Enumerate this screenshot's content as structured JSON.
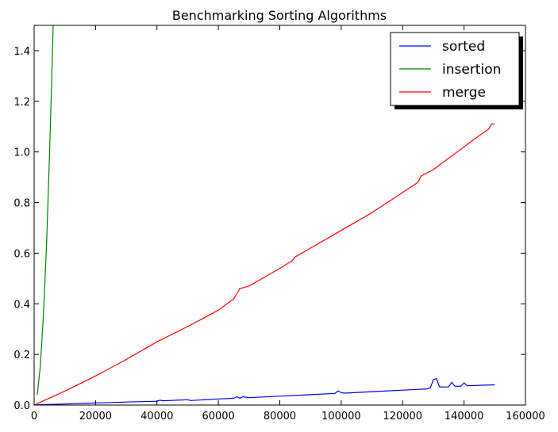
{
  "chart_data": {
    "type": "line",
    "title": "Benchmarking Sorting Algorithms",
    "xlabel": "",
    "ylabel": "",
    "xlim": [
      0,
      160000
    ],
    "ylim": [
      0,
      1.5
    ],
    "xticks": [
      0,
      20000,
      40000,
      60000,
      80000,
      100000,
      120000,
      140000,
      160000
    ],
    "yticks": [
      0.0,
      0.2,
      0.4,
      0.6,
      0.8,
      1.0,
      1.2,
      1.4
    ],
    "xtick_labels": [
      "0",
      "20000",
      "40000",
      "60000",
      "80000",
      "100000",
      "120000",
      "140000",
      "160000"
    ],
    "ytick_labels": [
      "0.0",
      "0.2",
      "0.4",
      "0.6",
      "0.8",
      "1.0",
      "1.2",
      "1.4"
    ],
    "grid": false,
    "legend": "top-right",
    "series": [
      {
        "name": "sorted",
        "color": "#0000ff",
        "x": [
          1000,
          10000,
          20000,
          30000,
          40000,
          41000,
          42000,
          50000,
          51000,
          60000,
          65000,
          66000,
          67000,
          68000,
          70000,
          80000,
          90000,
          98000,
          99000,
          100000,
          101000,
          110000,
          120000,
          128000,
          129000,
          130000,
          131000,
          132000,
          134000,
          135000,
          136000,
          137000,
          138000,
          139000,
          140000,
          141000,
          145000,
          150000
        ],
        "values": [
          0.001,
          0.004,
          0.008,
          0.012,
          0.015,
          0.019,
          0.017,
          0.021,
          0.018,
          0.024,
          0.027,
          0.033,
          0.027,
          0.033,
          0.029,
          0.035,
          0.041,
          0.046,
          0.056,
          0.049,
          0.047,
          0.053,
          0.059,
          0.064,
          0.068,
          0.1,
          0.105,
          0.072,
          0.071,
          0.072,
          0.09,
          0.075,
          0.074,
          0.075,
          0.088,
          0.076,
          0.078,
          0.08
        ]
      },
      {
        "name": "insertion",
        "color": "#008000",
        "x": [
          1000,
          2000,
          3000,
          4000,
          5000,
          6000,
          6600
        ],
        "values": [
          0.04,
          0.15,
          0.35,
          0.62,
          0.98,
          1.4,
          1.7
        ]
      },
      {
        "name": "merge",
        "color": "#ff0000",
        "x": [
          0,
          10000,
          20000,
          30000,
          40000,
          50000,
          60000,
          65000,
          66000,
          67000,
          70000,
          80000,
          84000,
          85000,
          90000,
          100000,
          110000,
          120000,
          125000,
          126000,
          130000,
          140000,
          145000,
          148000,
          149000,
          150000
        ],
        "values": [
          0.0,
          0.055,
          0.115,
          0.18,
          0.25,
          0.31,
          0.375,
          0.42,
          0.44,
          0.46,
          0.47,
          0.54,
          0.57,
          0.585,
          0.62,
          0.69,
          0.76,
          0.84,
          0.88,
          0.905,
          0.93,
          1.02,
          1.065,
          1.09,
          1.11,
          1.11
        ]
      }
    ]
  }
}
